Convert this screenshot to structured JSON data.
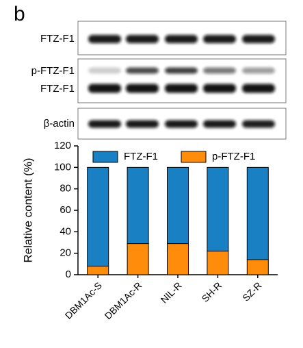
{
  "panel_label": "b",
  "blot_labels": [
    "FTZ-F1",
    "p-FTZ-F1",
    "FTZ-F1",
    "β-actin"
  ],
  "chart_data": {
    "type": "stacked_bar",
    "ylabel": "Relative content (%)",
    "categories": [
      "DBM1Ac-S",
      "DBM1Ac-R",
      "NIL-R",
      "SH-R",
      "SZ-R"
    ],
    "series": [
      {
        "name": "FTZ-F1",
        "color": "#1a80c4",
        "values": [
          92,
          71,
          71,
          78,
          86
        ]
      },
      {
        "name": "p-FTZ-F1",
        "color": "#ff8c0a",
        "values": [
          8,
          29,
          29,
          22,
          14
        ]
      }
    ],
    "ylim": [
      0,
      120
    ],
    "yticks": [
      0,
      20,
      40,
      60,
      80,
      100,
      120
    ],
    "legend": "top"
  }
}
